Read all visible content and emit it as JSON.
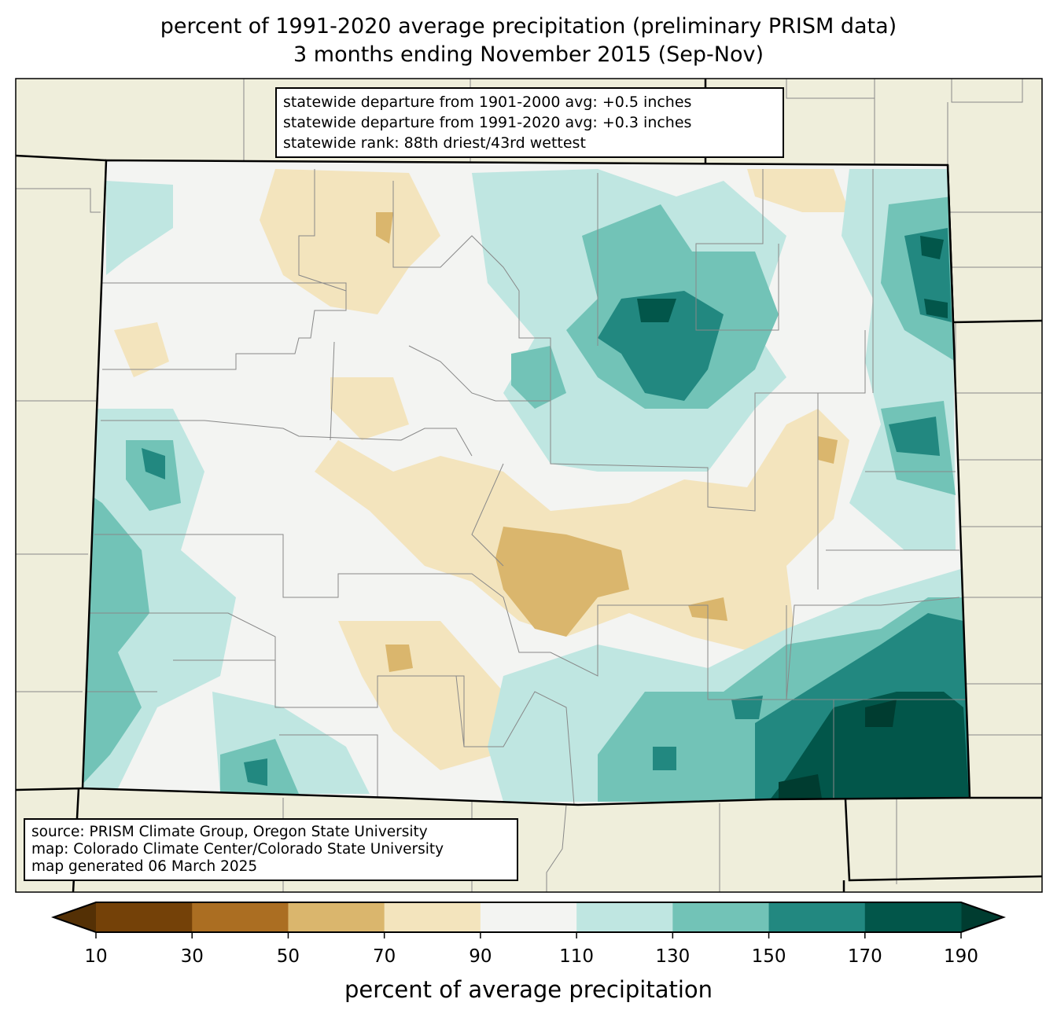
{
  "title": {
    "line1": "percent of 1991-2020 average precipitation (preliminary PRISM data)",
    "line2": "3 months ending November 2015 (Sep-Nov)"
  },
  "stats_box": {
    "line1": "statewide departure from 1901-2000 avg: +0.5 inches",
    "line2": "statewide departure from 1991-2020 avg: +0.3 inches",
    "line3": "statewide rank: 88th driest/43rd wettest"
  },
  "source_box": {
    "line1": "source: PRISM Climate Group, Oregon State University",
    "line2": "map: Colorado Climate Center/Colorado State University",
    "line3": "map generated 06 March 2025"
  },
  "colorbar": {
    "label": "percent of average precipitation",
    "ticks": [
      "10",
      "30",
      "50",
      "70",
      "90",
      "110",
      "130",
      "150",
      "170",
      "190"
    ],
    "colors": [
      "#744108",
      "#ab6e22",
      "#dab66d",
      "#f3e4bd",
      "#f3f4f2",
      "#bfe6e1",
      "#72c3b7",
      "#228880",
      "#02564a"
    ],
    "under_color": "#543005",
    "over_color": "#003c30"
  },
  "map_colors": {
    "background": "#efeedb",
    "state_fill": "#f3f4f2"
  }
}
